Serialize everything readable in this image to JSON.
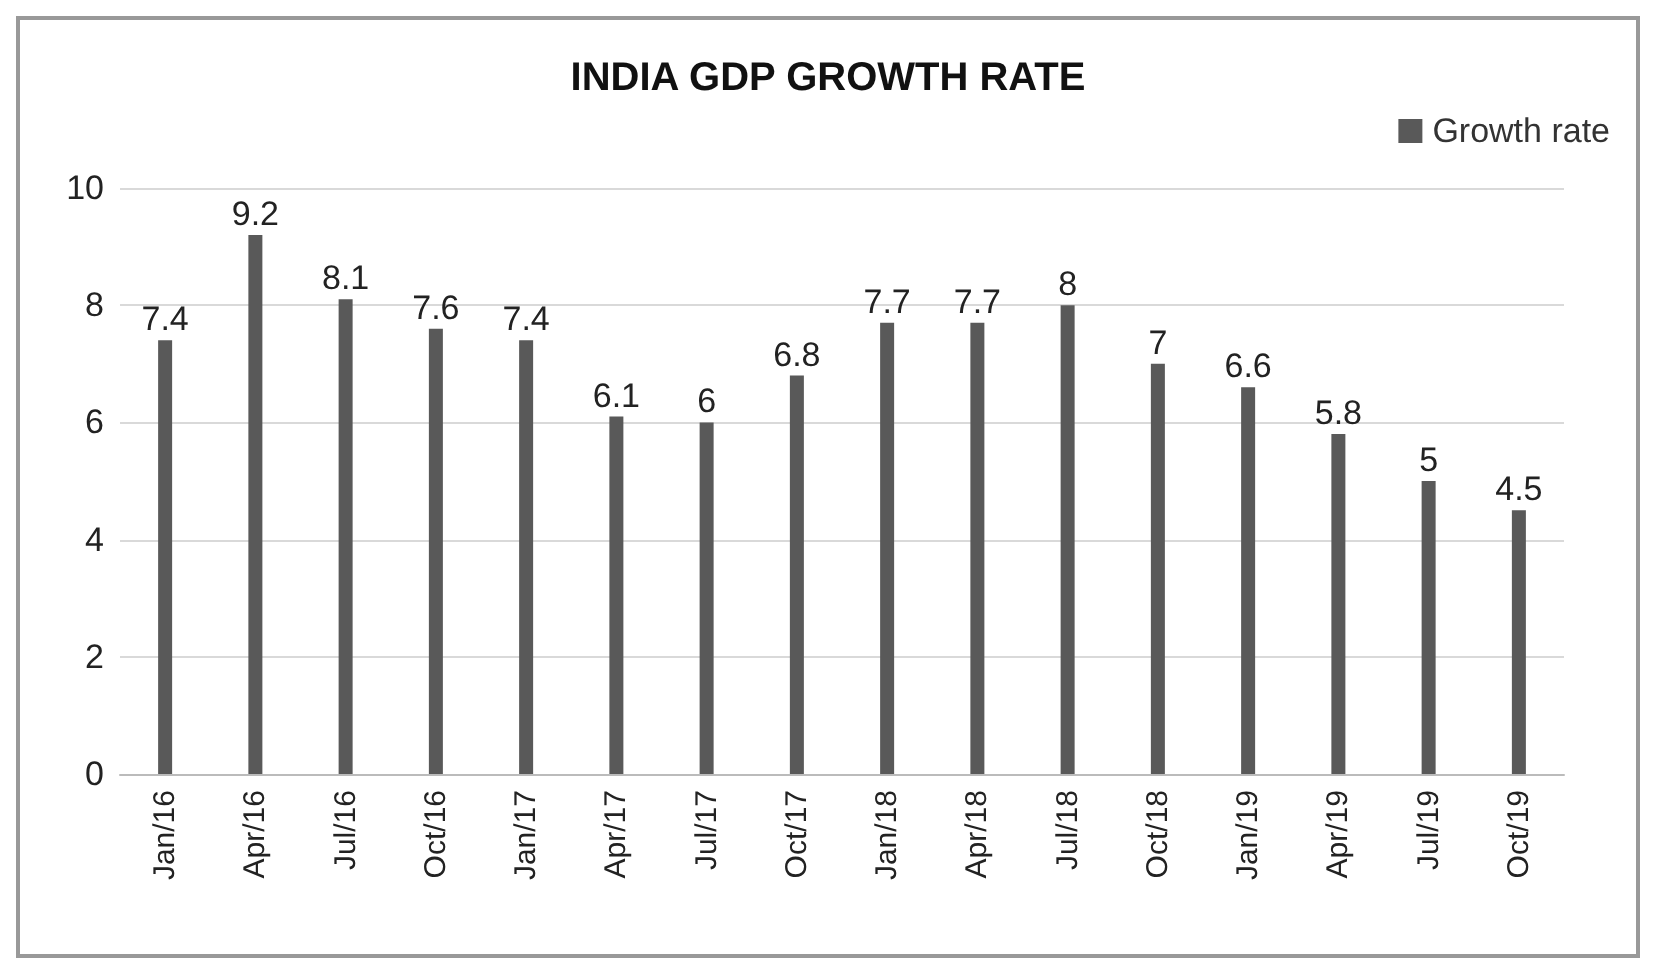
{
  "chart_data": {
    "type": "bar",
    "title": "INDIA GDP GROWTH RATE",
    "categories": [
      "Jan/16",
      "Apr/16",
      "Jul/16",
      "Oct/16",
      "Jan/17",
      "Apr/17",
      "Jul/17",
      "Oct/17",
      "Jan/18",
      "Apr/18",
      "Jul/18",
      "Oct/18",
      "Jan/19",
      "Apr/19",
      "Jul/19",
      "Oct/19"
    ],
    "series": [
      {
        "name": "Growth rate",
        "color": "#595959",
        "values": [
          7.4,
          9.2,
          8.1,
          7.6,
          7.4,
          6.1,
          6,
          6.8,
          7.7,
          7.7,
          8,
          7,
          6.6,
          5.8,
          5,
          4.5
        ]
      }
    ],
    "ylim": [
      0,
      10
    ],
    "yticks": [
      0,
      2,
      4,
      6,
      8,
      10
    ],
    "grid": "y",
    "legend": "top right",
    "data_labels": true
  }
}
